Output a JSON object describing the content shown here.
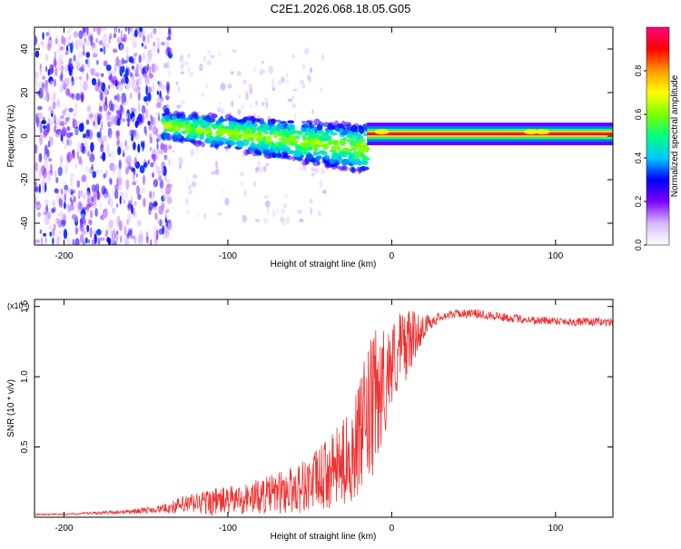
{
  "figure": {
    "title": "C2E1.2026.068.18.05.G05"
  },
  "chart_data": [
    {
      "id": "spectrogram",
      "type": "heatmap",
      "xlabel": "Height of straight line (km)",
      "ylabel": "Frequency (Hz)",
      "xlim": [
        -218,
        135
      ],
      "ylim": [
        -50,
        50
      ],
      "xticks": [
        -200,
        -100,
        0,
        100
      ],
      "yticks": [
        40,
        20,
        0,
        -20,
        -40
      ],
      "ytick_labels": [
        "40",
        "20",
        "0",
        "-20",
        "-40"
      ],
      "colorbar": {
        "label": "Normalized spectral amplitude",
        "range": [
          0,
          1
        ],
        "ticks": [
          0.0,
          0.2,
          0.4,
          0.6,
          0.8
        ],
        "tick_labels": [
          "0.0",
          "0.2",
          "0.4",
          "0.6",
          "0.8"
        ],
        "colormap": [
          "#ffffff",
          "#d7b8ff",
          "#7a00ff",
          "#0000ff",
          "#00c8ff",
          "#00ff80",
          "#7cff00",
          "#ffff00",
          "#ff9a00",
          "#ff0000",
          "#ff0080"
        ]
      },
      "regions": [
        {
          "name": "noise",
          "x_range": [
            -218,
            -135
          ],
          "freq_range": [
            -50,
            50
          ],
          "amplitude": 0.15
        },
        {
          "name": "broad signal",
          "x_range": [
            -140,
            -15
          ],
          "center_freq_start": 5,
          "center_freq_end": -6,
          "amplitude": 0.4
        },
        {
          "name": "narrow line",
          "x_range": [
            -15,
            135
          ],
          "center_freq": 1,
          "amplitude": 0.95
        }
      ]
    },
    {
      "id": "snr",
      "type": "line",
      "xlabel": "Height of straight line (km)",
      "ylabel": "SNR (10 * v/v)",
      "y_multiplier": "(x10⁴)",
      "xlim": [
        -218,
        135
      ],
      "ylim": [
        0,
        1.55
      ],
      "xticks": [
        -200,
        -100,
        0,
        100
      ],
      "yticks": [
        1.5,
        1.0,
        0.5
      ],
      "ytick_labels": [
        "1.5",
        "1.0",
        "0.5"
      ],
      "series": [
        {
          "name": "SNR",
          "color": "#ee3333",
          "x": [
            -218,
            -200,
            -180,
            -160,
            -140,
            -130,
            -120,
            -110,
            -100,
            -90,
            -80,
            -70,
            -60,
            -50,
            -40,
            -30,
            -25,
            -20,
            -15,
            -10,
            -5,
            0,
            5,
            10,
            15,
            20,
            25,
            30,
            40,
            50,
            60,
            70,
            80,
            90,
            100,
            110,
            120,
            135
          ],
          "values": [
            0.02,
            0.02,
            0.03,
            0.04,
            0.06,
            0.08,
            0.1,
            0.11,
            0.12,
            0.13,
            0.15,
            0.17,
            0.2,
            0.24,
            0.3,
            0.38,
            0.45,
            0.55,
            0.7,
            0.8,
            0.95,
            1.1,
            1.18,
            1.25,
            1.3,
            1.36,
            1.4,
            1.43,
            1.45,
            1.45,
            1.44,
            1.42,
            1.41,
            1.4,
            1.4,
            1.39,
            1.39,
            1.39
          ],
          "noise_amplitude": [
            0.005,
            0.005,
            0.01,
            0.015,
            0.03,
            0.06,
            0.08,
            0.1,
            0.1,
            0.11,
            0.13,
            0.15,
            0.18,
            0.2,
            0.25,
            0.3,
            0.35,
            0.4,
            0.5,
            0.55,
            0.4,
            0.3,
            0.3,
            0.25,
            0.15,
            0.08,
            0.05,
            0.03,
            0.03,
            0.03,
            0.04,
            0.03,
            0.03,
            0.03,
            0.03,
            0.03,
            0.03,
            0.03
          ]
        }
      ]
    }
  ]
}
